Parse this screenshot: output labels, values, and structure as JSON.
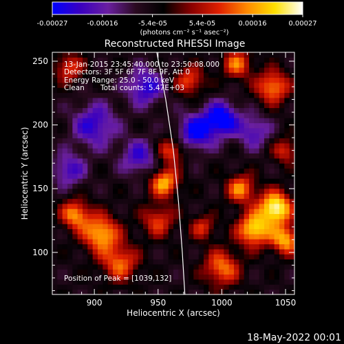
{
  "colorbar": {
    "ticks": [
      "-0.00027",
      "-0.00016",
      "-5.4e-05",
      "5.4e-05",
      "0.00016",
      "0.00027"
    ],
    "units": "(photons cm⁻² s⁻¹ asec⁻²)",
    "range": [
      -0.00027,
      0.00027
    ],
    "colormap": [
      "#0000ff",
      "#3a00c0",
      "#6a1fa0",
      "#2a0a20",
      "#000000",
      "#8a0000",
      "#e02000",
      "#ff8a00",
      "#ffe000",
      "#ffffff"
    ]
  },
  "chart_data": {
    "type": "heatmap",
    "title": "Reconstructed RHESSI Image",
    "xlabel": "Heliocentric X (arcsec)",
    "ylabel": "Heliocentric Y (arcsec)",
    "xlim": [
      867,
      1057
    ],
    "ylim": [
      67,
      257
    ],
    "x_ticks": [
      900,
      950,
      1000,
      1050
    ],
    "y_ticks": [
      100,
      150,
      200,
      250
    ],
    "annotations": {
      "time_range": "13-Jan-2015 23:45:40.000 to 23:50:08.000",
      "detectors": "Detectors: 3F 5F 6F 7F 8F 9F, Att 0",
      "energy": "Energy Range: 25.0 - 50.0 keV",
      "method": "Clean",
      "counts": "Total counts: 5.47E+03",
      "peak": "Position of Peak = [1039,132]"
    },
    "peak": [
      1039,
      132
    ],
    "limb_curve": [
      [
        949,
        257
      ],
      [
        956,
        220
      ],
      [
        962,
        180
      ],
      [
        966,
        140
      ],
      [
        969,
        100
      ],
      [
        971,
        67
      ]
    ],
    "sources": [
      {
        "x": 1042,
        "y": 135,
        "value": 0.00027,
        "sigma": 9
      },
      {
        "x": 1025,
        "y": 118,
        "value": 0.00022,
        "sigma": 9
      },
      {
        "x": 1050,
        "y": 110,
        "value": 0.00018,
        "sigma": 8
      },
      {
        "x": 1015,
        "y": 150,
        "value": 0.00015,
        "sigma": 8
      },
      {
        "x": 1000,
        "y": 88,
        "value": 0.00014,
        "sigma": 10
      },
      {
        "x": 905,
        "y": 115,
        "value": 0.00019,
        "sigma": 10
      },
      {
        "x": 885,
        "y": 130,
        "value": 0.00016,
        "sigma": 8
      },
      {
        "x": 920,
        "y": 92,
        "value": 0.00013,
        "sigma": 10
      },
      {
        "x": 955,
        "y": 155,
        "value": 0.00018,
        "sigma": 8
      },
      {
        "x": 960,
        "y": 180,
        "value": 0.00012,
        "sigma": 7
      },
      {
        "x": 950,
        "y": 125,
        "value": 0.0001,
        "sigma": 9
      },
      {
        "x": 1040,
        "y": 230,
        "value": 0.00016,
        "sigma": 9
      },
      {
        "x": 1012,
        "y": 248,
        "value": 0.00013,
        "sigma": 8
      },
      {
        "x": 975,
        "y": 235,
        "value": 0.00011,
        "sigma": 8
      },
      {
        "x": 880,
        "y": 245,
        "value": 0.0001,
        "sigma": 8
      },
      {
        "x": 1050,
        "y": 180,
        "value": 9e-05,
        "sigma": 7
      },
      {
        "x": 985,
        "y": 120,
        "value": 8e-05,
        "sigma": 7
      },
      {
        "x": 980,
        "y": 195,
        "value": -0.00015,
        "sigma": 10
      },
      {
        "x": 1000,
        "y": 205,
        "value": -0.00018,
        "sigma": 9
      },
      {
        "x": 940,
        "y": 230,
        "value": -0.00012,
        "sigma": 10
      },
      {
        "x": 900,
        "y": 200,
        "value": -0.00011,
        "sigma": 12
      },
      {
        "x": 935,
        "y": 175,
        "value": -9e-05,
        "sigma": 10
      },
      {
        "x": 1025,
        "y": 195,
        "value": -8e-05,
        "sigma": 9
      },
      {
        "x": 880,
        "y": 165,
        "value": -9e-05,
        "sigma": 9
      }
    ]
  },
  "footer": {
    "date": "18-May-2022 00:01"
  }
}
